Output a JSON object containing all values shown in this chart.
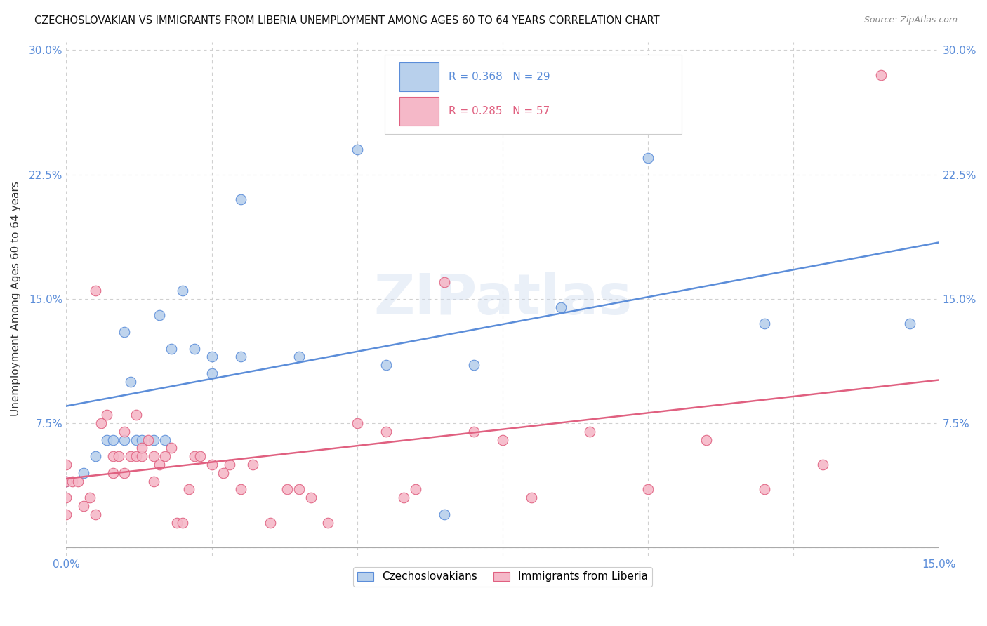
{
  "title": "CZECHOSLOVAKIAN VS IMMIGRANTS FROM LIBERIA UNEMPLOYMENT AMONG AGES 60 TO 64 YEARS CORRELATION CHART",
  "source": "Source: ZipAtlas.com",
  "ylabel": "Unemployment Among Ages 60 to 64 years",
  "xlim": [
    0.0,
    0.15
  ],
  "ylim": [
    -0.005,
    0.305
  ],
  "xticks": [
    0.0,
    0.025,
    0.05,
    0.075,
    0.1,
    0.125,
    0.15
  ],
  "xtick_labels": [
    "0.0%",
    "",
    "",
    "",
    "",
    "",
    "15.0%"
  ],
  "yticks": [
    0.0,
    0.075,
    0.15,
    0.225,
    0.3
  ],
  "ytick_labels": [
    "",
    "7.5%",
    "15.0%",
    "22.5%",
    "30.0%"
  ],
  "background_color": "#ffffff",
  "grid_color": "#d0d0d0",
  "watermark": "ZIPatlas",
  "series": [
    {
      "name": "Czechoslovakians",
      "R": "0.368",
      "N": "29",
      "color": "#b8d0ec",
      "line_color": "#5b8dd9",
      "x": [
        0.0,
        0.003,
        0.005,
        0.007,
        0.008,
        0.01,
        0.01,
        0.011,
        0.012,
        0.013,
        0.015,
        0.016,
        0.017,
        0.018,
        0.02,
        0.022,
        0.025,
        0.025,
        0.03,
        0.03,
        0.04,
        0.05,
        0.055,
        0.065,
        0.07,
        0.085,
        0.1,
        0.12,
        0.145
      ],
      "y": [
        0.04,
        0.045,
        0.055,
        0.065,
        0.065,
        0.065,
        0.13,
        0.1,
        0.065,
        0.065,
        0.065,
        0.14,
        0.065,
        0.12,
        0.155,
        0.12,
        0.105,
        0.115,
        0.115,
        0.21,
        0.115,
        0.24,
        0.11,
        0.02,
        0.11,
        0.145,
        0.235,
        0.135,
        0.135
      ]
    },
    {
      "name": "Immigrants from Liberia",
      "R": "0.285",
      "N": "57",
      "color": "#f5b8c8",
      "line_color": "#e06080",
      "x": [
        0.0,
        0.0,
        0.0,
        0.0,
        0.001,
        0.002,
        0.003,
        0.004,
        0.005,
        0.005,
        0.006,
        0.007,
        0.008,
        0.008,
        0.009,
        0.01,
        0.01,
        0.011,
        0.012,
        0.012,
        0.013,
        0.013,
        0.014,
        0.015,
        0.015,
        0.016,
        0.017,
        0.018,
        0.019,
        0.02,
        0.021,
        0.022,
        0.023,
        0.025,
        0.027,
        0.028,
        0.03,
        0.032,
        0.035,
        0.038,
        0.04,
        0.042,
        0.045,
        0.05,
        0.055,
        0.058,
        0.06,
        0.065,
        0.07,
        0.075,
        0.08,
        0.09,
        0.1,
        0.11,
        0.12,
        0.13,
        0.14
      ],
      "y": [
        0.02,
        0.03,
        0.04,
        0.05,
        0.04,
        0.04,
        0.025,
        0.03,
        0.02,
        0.155,
        0.075,
        0.08,
        0.045,
        0.055,
        0.055,
        0.045,
        0.07,
        0.055,
        0.055,
        0.08,
        0.055,
        0.06,
        0.065,
        0.04,
        0.055,
        0.05,
        0.055,
        0.06,
        0.015,
        0.015,
        0.035,
        0.055,
        0.055,
        0.05,
        0.045,
        0.05,
        0.035,
        0.05,
        0.015,
        0.035,
        0.035,
        0.03,
        0.015,
        0.075,
        0.07,
        0.03,
        0.035,
        0.16,
        0.07,
        0.065,
        0.03,
        0.07,
        0.035,
        0.065,
        0.035,
        0.05,
        0.285
      ]
    }
  ]
}
